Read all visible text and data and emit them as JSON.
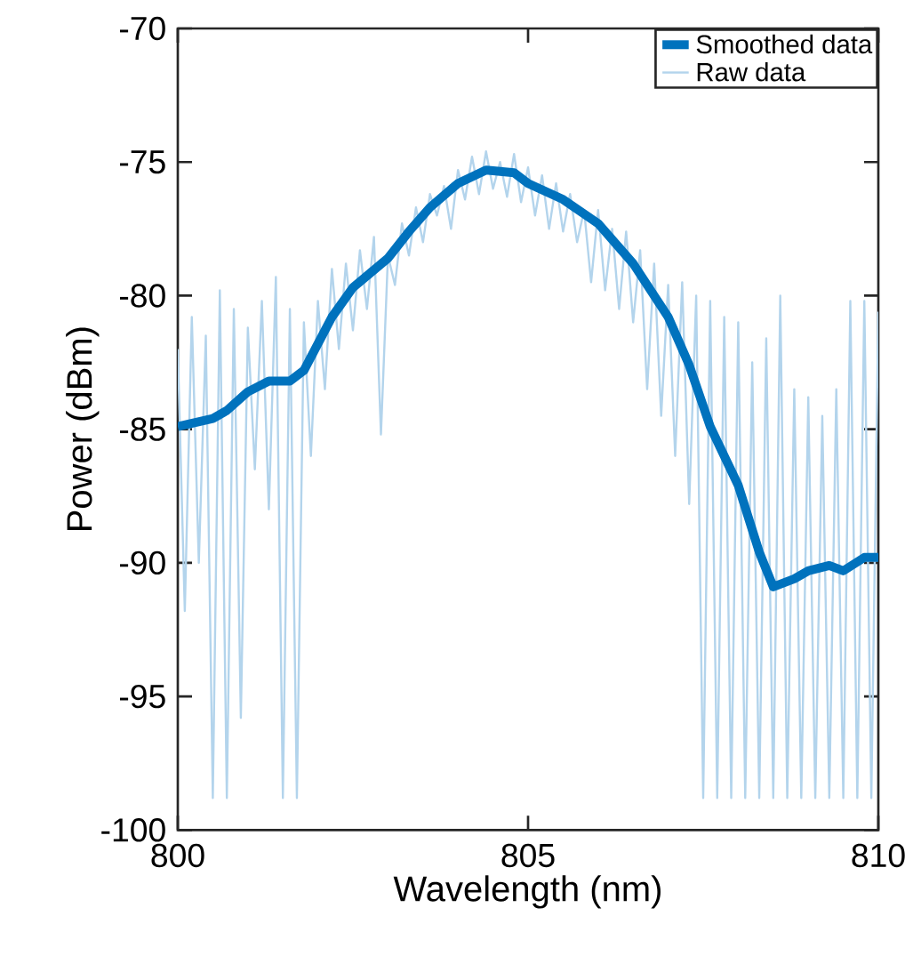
{
  "chart_data": {
    "type": "line",
    "xlabel": "Wavelength (nm)",
    "ylabel": "Power (dBm)",
    "xlim": [
      800,
      810
    ],
    "ylim": [
      -100,
      -70
    ],
    "xticks": [
      800,
      805,
      810
    ],
    "yticks": [
      -100,
      -95,
      -90,
      -85,
      -80,
      -75,
      -70
    ],
    "grid": false,
    "legend": "top right",
    "marker": "none",
    "line_style": "solid",
    "series": [
      {
        "name": "Smoothed data",
        "color": "#0072bd",
        "x": [
          800,
          800.5,
          800.7,
          801,
          801.3,
          801.6,
          801.8,
          802,
          802.2,
          802.5,
          803,
          803.3,
          803.6,
          804,
          804.4,
          804.8,
          805,
          805.5,
          806,
          806.5,
          807,
          807.3,
          807.6,
          808,
          808.3,
          808.5,
          808.8,
          809,
          809.3,
          809.5,
          809.8,
          810
        ],
        "values": [
          -84.9,
          -84.6,
          -84.3,
          -83.6,
          -83.2,
          -83.2,
          -82.8,
          -81.8,
          -80.8,
          -79.7,
          -78.6,
          -77.6,
          -76.7,
          -75.8,
          -75.3,
          -75.4,
          -75.8,
          -76.4,
          -77.3,
          -78.8,
          -80.8,
          -82.6,
          -84.9,
          -87.1,
          -89.6,
          -90.9,
          -90.6,
          -90.3,
          -90.1,
          -90.3,
          -89.8,
          -89.8
        ]
      },
      {
        "name": "Raw data",
        "color": "#b3d4ec",
        "x": [
          800.0,
          800.1,
          800.2,
          800.3,
          800.4,
          800.5,
          800.6,
          800.7,
          800.8,
          800.9,
          801.0,
          801.1,
          801.2,
          801.3,
          801.4,
          801.5,
          801.6,
          801.7,
          801.8,
          801.9,
          802.0,
          802.1,
          802.2,
          802.3,
          802.4,
          802.5,
          802.6,
          802.7,
          802.8,
          802.9,
          803.0,
          803.1,
          803.2,
          803.3,
          803.4,
          803.5,
          803.6,
          803.7,
          803.8,
          803.9,
          804.0,
          804.1,
          804.2,
          804.3,
          804.4,
          804.5,
          804.6,
          804.7,
          804.8,
          804.9,
          805.0,
          805.1,
          805.2,
          805.3,
          805.4,
          805.5,
          805.6,
          805.7,
          805.8,
          805.9,
          806.0,
          806.1,
          806.2,
          806.3,
          806.4,
          806.5,
          806.6,
          806.7,
          806.8,
          806.9,
          807.0,
          807.1,
          807.2,
          807.3,
          807.4,
          807.5,
          807.6,
          807.7,
          807.8,
          807.9,
          808.0,
          808.1,
          808.2,
          808.3,
          808.4,
          808.5,
          808.6,
          808.7,
          808.8,
          808.9,
          809.0,
          809.1,
          809.2,
          809.3,
          809.4,
          809.5,
          809.6,
          809.7,
          809.8,
          809.9,
          810.0
        ],
        "values": [
          -82,
          -91.8,
          -80.8,
          -90,
          -81.5,
          -98.8,
          -79.8,
          -98.8,
          -80.5,
          -95.8,
          -81.2,
          -86.5,
          -80.2,
          -88,
          -79.3,
          -98.8,
          -80.5,
          -98.8,
          -81,
          -86,
          -80.2,
          -83.5,
          -79,
          -82,
          -78.8,
          -81.3,
          -78.3,
          -80.5,
          -77.8,
          -85.2,
          -78.5,
          -79.6,
          -77.3,
          -78.5,
          -76.7,
          -78,
          -76.2,
          -77,
          -75.9,
          -77.5,
          -75.3,
          -76.4,
          -74.8,
          -76.2,
          -74.6,
          -76,
          -75,
          -76.3,
          -74.7,
          -76.5,
          -75.2,
          -77,
          -75.5,
          -77.5,
          -75.8,
          -77.6,
          -76.2,
          -78,
          -76.8,
          -79.5,
          -76.8,
          -79.8,
          -77.5,
          -80.5,
          -77.6,
          -81,
          -78.3,
          -83.5,
          -78.8,
          -84.5,
          -79.6,
          -86,
          -79.5,
          -87.8,
          -80,
          -98.8,
          -80.2,
          -98.8,
          -80.8,
          -98.8,
          -81,
          -98.8,
          -82.5,
          -98.8,
          -81.6,
          -98.8,
          -80,
          -98.8,
          -83.5,
          -98.8,
          -83.8,
          -98.8,
          -84.5,
          -98.8,
          -83.5,
          -98.8,
          -80.2,
          -98.8,
          -80.2,
          -98.8,
          -80.6
        ]
      }
    ]
  }
}
